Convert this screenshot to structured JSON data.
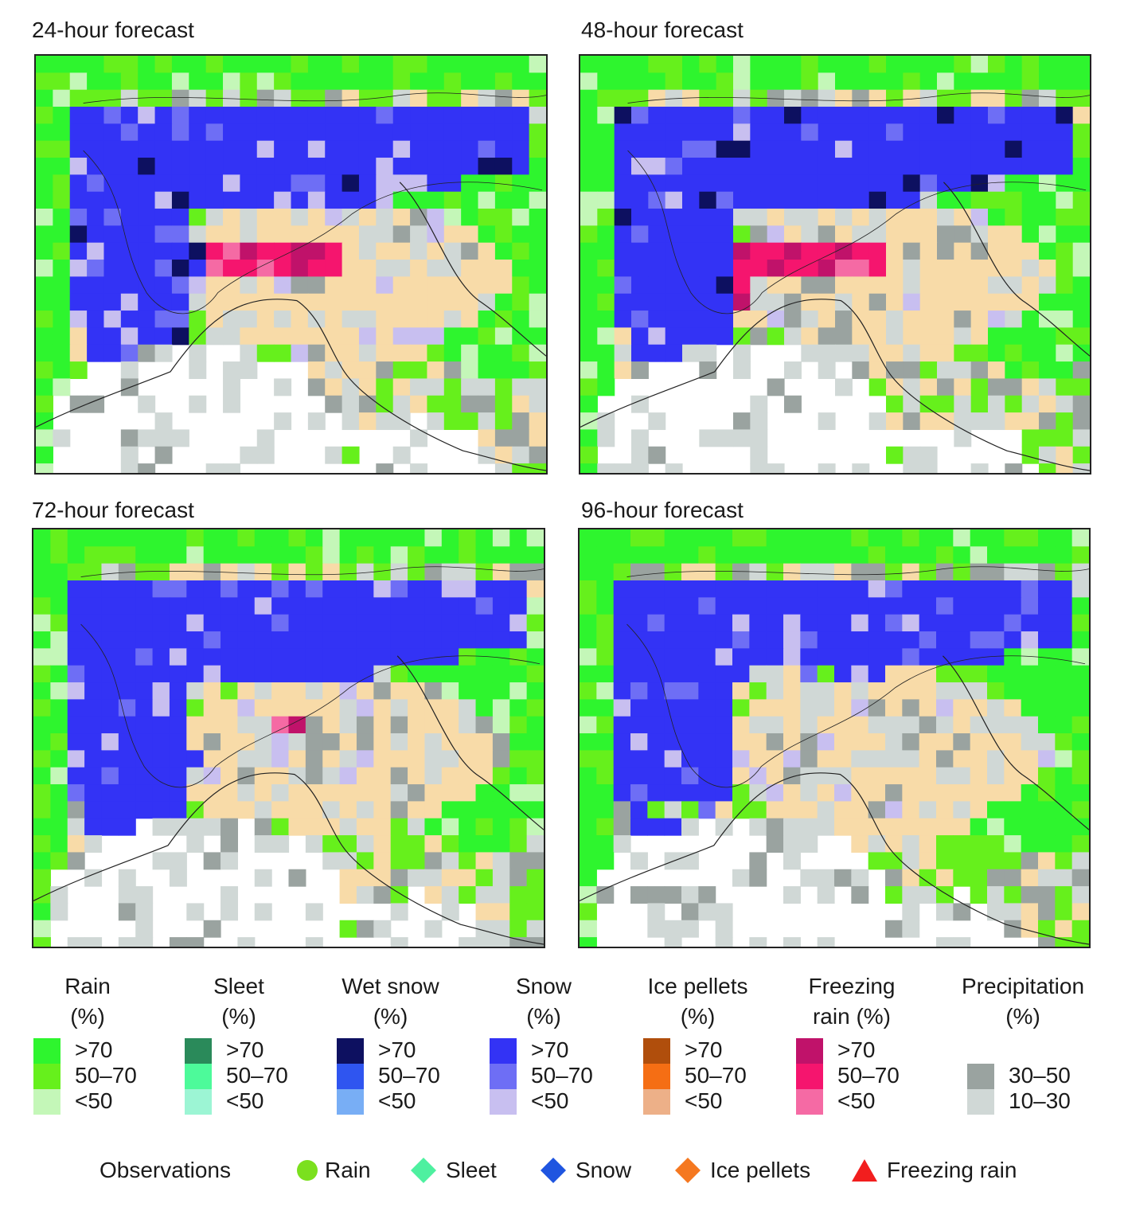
{
  "panels": [
    {
      "title": "24-hour forecast"
    },
    {
      "title": "48-hour forecast"
    },
    {
      "title": "72-hour forecast"
    },
    {
      "title": "96-hour forecast"
    }
  ],
  "colors": {
    "rain_hi": "#2ef52e",
    "rain_mid": "#66f01c",
    "rain_lo": "#c4f7b8",
    "sleet_hi": "#2a8a5a",
    "sleet_mid": "#4dfa9a",
    "sleet_lo": "#9cf5d4",
    "wetsnow_hi": "#0d1060",
    "wetsnow_mid": "#2f55f0",
    "wetsnow_lo": "#78aef5",
    "snow_hi": "#3333f5",
    "snow_mid": "#6e6ef5",
    "snow_lo": "#c8bff0",
    "ice_hi": "#b04e0c",
    "ice_mid": "#f56e14",
    "ice_lo": "#edb088",
    "frz_hi": "#c0126a",
    "frz_mid": "#f5156e",
    "frz_lo": "#f56aa4",
    "precip_hi": "#9aa3a0",
    "precip_lo": "#d0d8d6",
    "land": "#f8dba8",
    "sea": "#ffffff"
  },
  "legend": {
    "categories": [
      {
        "title": "Rain",
        "unit": "(%)",
        "rows": [
          {
            "label": ">70",
            "color": "#2ef52e"
          },
          {
            "label": "50–70",
            "color": "#66f01c"
          },
          {
            "label": "<50",
            "color": "#c4f7b8"
          }
        ]
      },
      {
        "title": "Sleet",
        "unit": "(%)",
        "rows": [
          {
            "label": ">70",
            "color": "#2a8a5a"
          },
          {
            "label": "50–70",
            "color": "#4dfa9a"
          },
          {
            "label": "<50",
            "color": "#9cf5d4"
          }
        ]
      },
      {
        "title": "Wet snow",
        "unit": "(%)",
        "rows": [
          {
            "label": ">70",
            "color": "#0d1060"
          },
          {
            "label": "50–70",
            "color": "#2f55f0"
          },
          {
            "label": "<50",
            "color": "#78aef5"
          }
        ]
      },
      {
        "title": "Snow",
        "unit": "(%)",
        "rows": [
          {
            "label": ">70",
            "color": "#3333f5"
          },
          {
            "label": "50–70",
            "color": "#6e6ef5"
          },
          {
            "label": "<50",
            "color": "#c8bff0"
          }
        ]
      },
      {
        "title": "Ice pellets",
        "unit": "(%)",
        "rows": [
          {
            "label": ">70",
            "color": "#b04e0c"
          },
          {
            "label": "50–70",
            "color": "#f56e14"
          },
          {
            "label": "<50",
            "color": "#edb088"
          }
        ]
      },
      {
        "title": "Freezing",
        "unit": "rain (%)",
        "rows": [
          {
            "label": ">70",
            "color": "#c0126a"
          },
          {
            "label": "50–70",
            "color": "#f5156e"
          },
          {
            "label": "<50",
            "color": "#f56aa4"
          }
        ]
      },
      {
        "title": "Precipitation",
        "unit": "(%)",
        "rows": [
          {
            "label": "30–50",
            "color": "#9aa3a0"
          },
          {
            "label": "10–30",
            "color": "#d0d8d6"
          }
        ]
      }
    ]
  },
  "observations": {
    "title": "Observations",
    "items": [
      {
        "label": "Rain",
        "shape": "circle",
        "color": "#7be01e"
      },
      {
        "label": "Sleet",
        "shape": "diamond",
        "color": "#4ef0a0"
      },
      {
        "label": "Snow",
        "shape": "diamond",
        "color": "#1f55e0"
      },
      {
        "label": "Ice pellets",
        "shape": "diamond",
        "color": "#f57820"
      },
      {
        "label": "Freezing rain",
        "shape": "triangle",
        "color": "#f21e1e"
      }
    ]
  }
}
